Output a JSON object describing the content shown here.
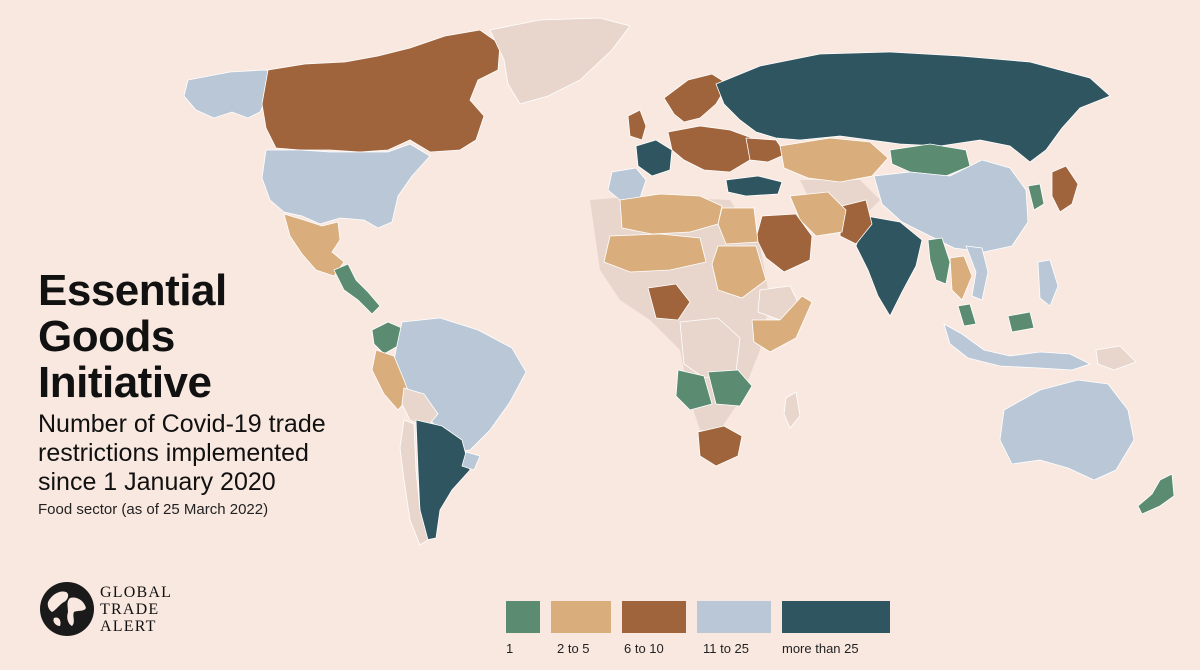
{
  "title": {
    "line1": "Essential",
    "line2": "Goods",
    "line3": "Initiative",
    "subtitle_line1": "Number of Covid-19 trade",
    "subtitle_line2": "restrictions implemented",
    "subtitle_line3": "since 1 January 2020",
    "note": "Food sector (as of 25 March 2022)"
  },
  "logo": {
    "line1": "GLOBAL",
    "line2": "TRADE",
    "line3": "ALERT"
  },
  "legend": [
    {
      "label": "1",
      "color": "#5b8c72"
    },
    {
      "label": "2 to 5",
      "color": "#d9ad7c"
    },
    {
      "label": "6 to 10",
      "color": "#a0643c"
    },
    {
      "label": "11 to 25",
      "color": "#b9c7d6"
    },
    {
      "label": "more than 25",
      "color": "#2f5560"
    }
  ],
  "colors": {
    "background": "#f9e8e0",
    "no_data": "#e8d6cc",
    "border": "#ffffff"
  },
  "map_regions": [
    {
      "region": "Alaska",
      "category": "11 to 25"
    },
    {
      "region": "Canada",
      "category": "6 to 10"
    },
    {
      "region": "United States",
      "category": "11 to 25"
    },
    {
      "region": "Greenland",
      "category": "none"
    },
    {
      "region": "Mexico",
      "category": "2 to 5"
    },
    {
      "region": "Central America",
      "category": "1"
    },
    {
      "region": "Colombia",
      "category": "1"
    },
    {
      "region": "Brazil",
      "category": "11 to 25"
    },
    {
      "region": "Peru",
      "category": "2 to 5"
    },
    {
      "region": "Bolivia",
      "category": "none"
    },
    {
      "region": "Argentina",
      "category": "more than 25"
    },
    {
      "region": "Chile",
      "category": "none"
    },
    {
      "region": "Uruguay",
      "category": "11 to 25"
    },
    {
      "region": "France",
      "category": "more than 25"
    },
    {
      "region": "Iberia",
      "category": "11 to 25"
    },
    {
      "region": "Central Europe",
      "category": "6 to 10"
    },
    {
      "region": "Scandinavia",
      "category": "6 to 10"
    },
    {
      "region": "United Kingdom",
      "category": "6 to 10"
    },
    {
      "region": "Turkey",
      "category": "more than 25"
    },
    {
      "region": "Ukraine",
      "category": "6 to 10"
    },
    {
      "region": "Russia",
      "category": "more than 25"
    },
    {
      "region": "Kazakhstan",
      "category": "2 to 5"
    },
    {
      "region": "Mongolia",
      "category": "1"
    },
    {
      "region": "China",
      "category": "11 to 25"
    },
    {
      "region": "India",
      "category": "more than 25"
    },
    {
      "region": "Pakistan",
      "category": "6 to 10"
    },
    {
      "region": "Iran",
      "category": "2 to 5"
    },
    {
      "region": "Saudi Arabia",
      "category": "6 to 10"
    },
    {
      "region": "Egypt",
      "category": "2 to 5"
    },
    {
      "region": "North Africa",
      "category": "2 to 5"
    },
    {
      "region": "Mali and Niger",
      "category": "2 to 5"
    },
    {
      "region": "Sudan",
      "category": "2 to 5"
    },
    {
      "region": "Nigeria",
      "category": "6 to 10"
    },
    {
      "region": "Ethiopia",
      "category": "none"
    },
    {
      "region": "Kenya and Somalia",
      "category": "2 to 5"
    },
    {
      "region": "DR Congo",
      "category": "none"
    },
    {
      "region": "Angola",
      "category": "1"
    },
    {
      "region": "Zambia and Zimbabwe",
      "category": "1"
    },
    {
      "region": "South Africa",
      "category": "6 to 10"
    },
    {
      "region": "Madagascar",
      "category": "none"
    },
    {
      "region": "Myanmar",
      "category": "1"
    },
    {
      "region": "Thailand",
      "category": "2 to 5"
    },
    {
      "region": "Vietnam",
      "category": "11 to 25"
    },
    {
      "region": "Japan",
      "category": "6 to 10"
    },
    {
      "region": "Korea",
      "category": "1"
    },
    {
      "region": "Indonesia",
      "category": "11 to 25"
    },
    {
      "region": "Malaysia",
      "category": "1"
    },
    {
      "region": "Philippines",
      "category": "11 to 25"
    },
    {
      "region": "Papua New Guinea",
      "category": "none"
    },
    {
      "region": "Australia",
      "category": "11 to 25"
    },
    {
      "region": "New Zealand",
      "category": "1"
    }
  ]
}
